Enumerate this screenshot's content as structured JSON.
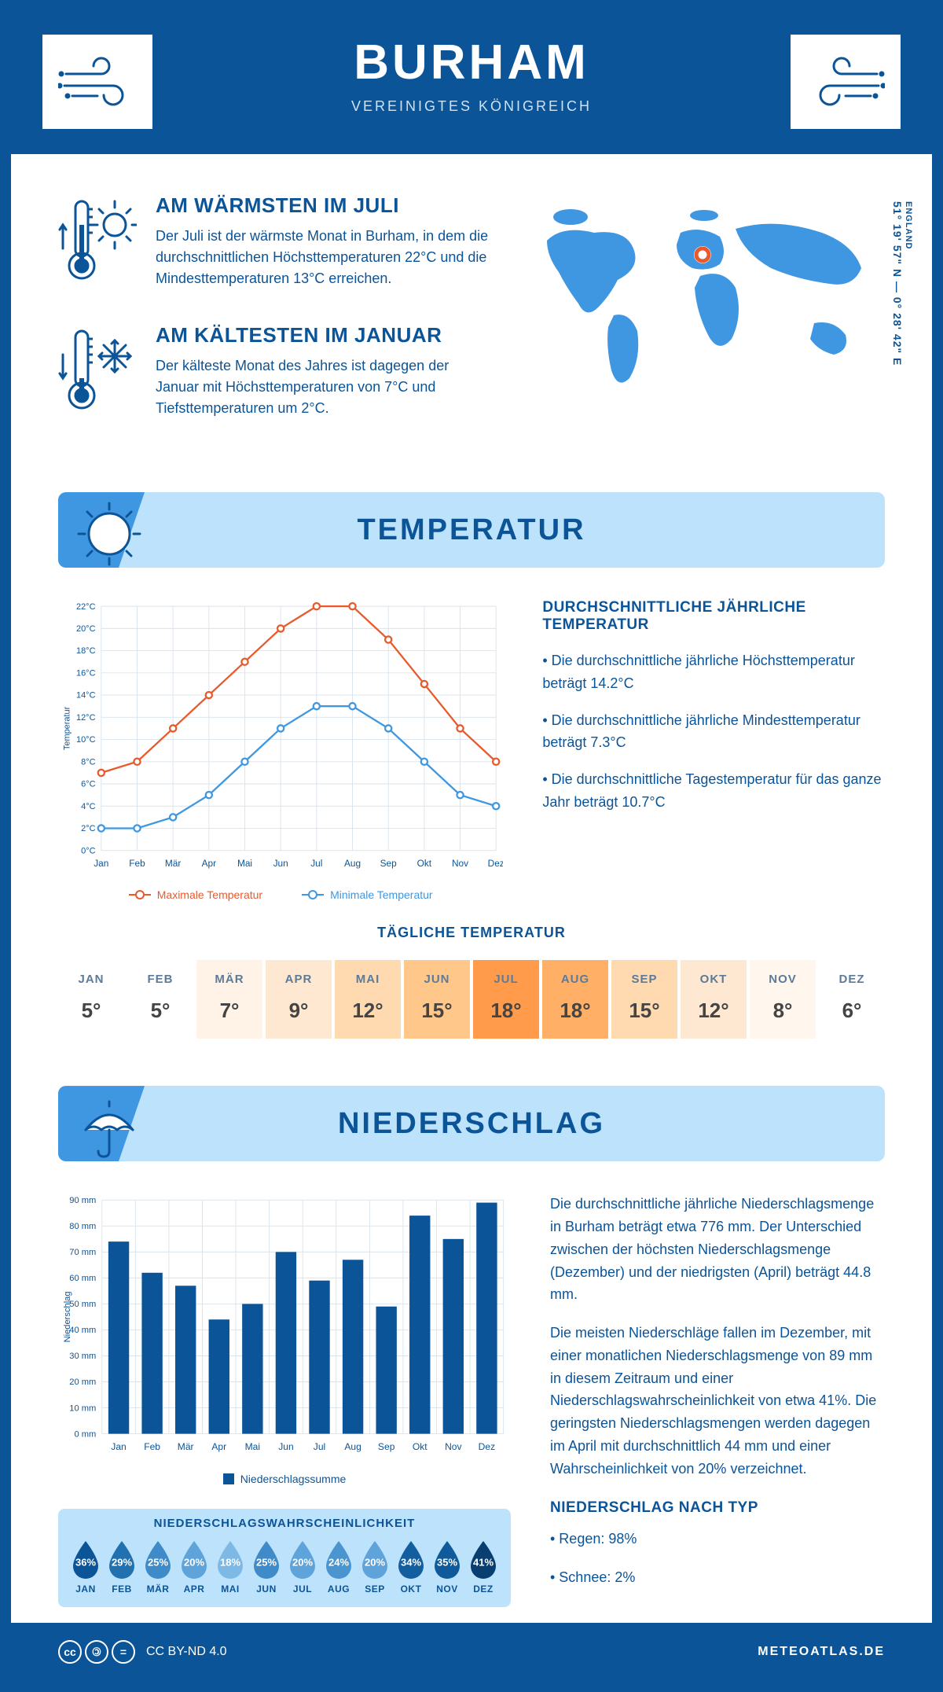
{
  "header": {
    "title": "BURHAM",
    "subtitle": "VEREINIGTES KÖNIGREICH"
  },
  "coords": {
    "text": "51° 19' 57\" N — 0° 28' 42\" E",
    "region": "ENGLAND"
  },
  "facts": {
    "warm": {
      "title": "AM WÄRMSTEN IM JULI",
      "body": "Der Juli ist der wärmste Monat in Burham, in dem die durchschnittlichen Höchsttemperaturen 22°C und die Mindesttemperaturen 13°C erreichen."
    },
    "cold": {
      "title": "AM KÄLTESTEN IM JANUAR",
      "body": "Der kälteste Monat des Jahres ist dagegen der Januar mit Höchsttemperaturen von 7°C und Tiefsttemperaturen um 2°C."
    }
  },
  "section_temp_title": "TEMPERATUR",
  "temp_chart": {
    "type": "line",
    "months": [
      "Jan",
      "Feb",
      "Mär",
      "Apr",
      "Mai",
      "Jun",
      "Jul",
      "Aug",
      "Sep",
      "Okt",
      "Nov",
      "Dez"
    ],
    "max_series": [
      7,
      8,
      11,
      14,
      17,
      20,
      22,
      22,
      19,
      15,
      11,
      8
    ],
    "min_series": [
      2,
      2,
      3,
      5,
      8,
      11,
      13,
      13,
      11,
      8,
      5,
      4
    ],
    "max_color": "#e85a2c",
    "min_color": "#3f97e2",
    "grid_color": "#d9e3ec",
    "axis_color": "#0b5498",
    "y_min": 0,
    "y_max": 22,
    "y_step": 2,
    "y_unit": "°C",
    "y_axis_label": "Temperatur",
    "legend_max": "Maximale Temperatur",
    "legend_min": "Minimale Temperatur"
  },
  "temp_info": {
    "heading": "DURCHSCHNITTLICHE JÄHRLICHE TEMPERATUR",
    "bullets": [
      "• Die durchschnittliche jährliche Höchsttemperatur beträgt 14.2°C",
      "• Die durchschnittliche jährliche Mindesttemperatur beträgt 7.3°C",
      "• Die durchschnittliche Tagestemperatur für das ganze Jahr beträgt 10.7°C"
    ]
  },
  "daily_temp": {
    "heading": "TÄGLICHE TEMPERATUR",
    "months": [
      "JAN",
      "FEB",
      "MÄR",
      "APR",
      "MAI",
      "JUN",
      "JUL",
      "AUG",
      "SEP",
      "OKT",
      "NOV",
      "DEZ"
    ],
    "values": [
      "5°",
      "5°",
      "7°",
      "9°",
      "12°",
      "15°",
      "18°",
      "18°",
      "15°",
      "12°",
      "8°",
      "6°"
    ],
    "colors": [
      "#ffffff",
      "#ffffff",
      "#fff2e6",
      "#ffe8d2",
      "#ffd9b0",
      "#ffc88a",
      "#ff9b4a",
      "#ffb066",
      "#ffd9b0",
      "#ffe8d2",
      "#fff6ee",
      "#ffffff"
    ]
  },
  "section_precip_title": "NIEDERSCHLAG",
  "precip_chart": {
    "type": "bar",
    "months": [
      "Jan",
      "Feb",
      "Mär",
      "Apr",
      "Mai",
      "Jun",
      "Jul",
      "Aug",
      "Sep",
      "Okt",
      "Nov",
      "Dez"
    ],
    "values": [
      74,
      62,
      57,
      44,
      50,
      70,
      59,
      67,
      49,
      84,
      75,
      89
    ],
    "bar_color": "#0b5498",
    "grid_color": "#d9e3ec",
    "axis_color": "#0b5498",
    "y_min": 0,
    "y_max": 90,
    "y_step": 10,
    "y_unit": " mm",
    "y_axis_label": "Niederschlag",
    "legend": "Niederschlagssumme"
  },
  "precip_text": {
    "p1": "Die durchschnittliche jährliche Niederschlagsmenge in Burham beträgt etwa 776 mm. Der Unterschied zwischen der höchsten Niederschlagsmenge (Dezember) und der niedrigsten (April) beträgt 44.8 mm.",
    "p2": "Die meisten Niederschläge fallen im Dezember, mit einer monatlichen Niederschlagsmenge von 89 mm in diesem Zeitraum und einer Niederschlagswahrscheinlichkeit von etwa 41%. Die geringsten Niederschlagsmengen werden dagegen im April mit durchschnittlich 44 mm und einer Wahrscheinlichkeit von 20% verzeichnet.",
    "type_heading": "NIEDERSCHLAG NACH TYP",
    "type_rain": "• Regen: 98%",
    "type_snow": "• Schnee: 2%"
  },
  "prob": {
    "heading": "NIEDERSCHLAGSWAHRSCHEINLICHKEIT",
    "months": [
      "JAN",
      "FEB",
      "MÄR",
      "APR",
      "MAI",
      "JUN",
      "JUL",
      "AUG",
      "SEP",
      "OKT",
      "NOV",
      "DEZ"
    ],
    "values": [
      "36%",
      "29%",
      "25%",
      "20%",
      "18%",
      "25%",
      "20%",
      "24%",
      "20%",
      "34%",
      "35%",
      "41%"
    ],
    "colors": [
      "#0b5498",
      "#2170b0",
      "#3f8bc9",
      "#5ea3da",
      "#7eb9e6",
      "#3f8bc9",
      "#5ea3da",
      "#4a95d0",
      "#5ea3da",
      "#125e9f",
      "#0f5a9b",
      "#083e70"
    ]
  },
  "footer": {
    "license": "CC BY-ND 4.0",
    "site": "METEOATLAS.DE"
  },
  "colors": {
    "primary": "#0b5498",
    "light": "#bde2fb",
    "mid": "#3f97e2"
  }
}
